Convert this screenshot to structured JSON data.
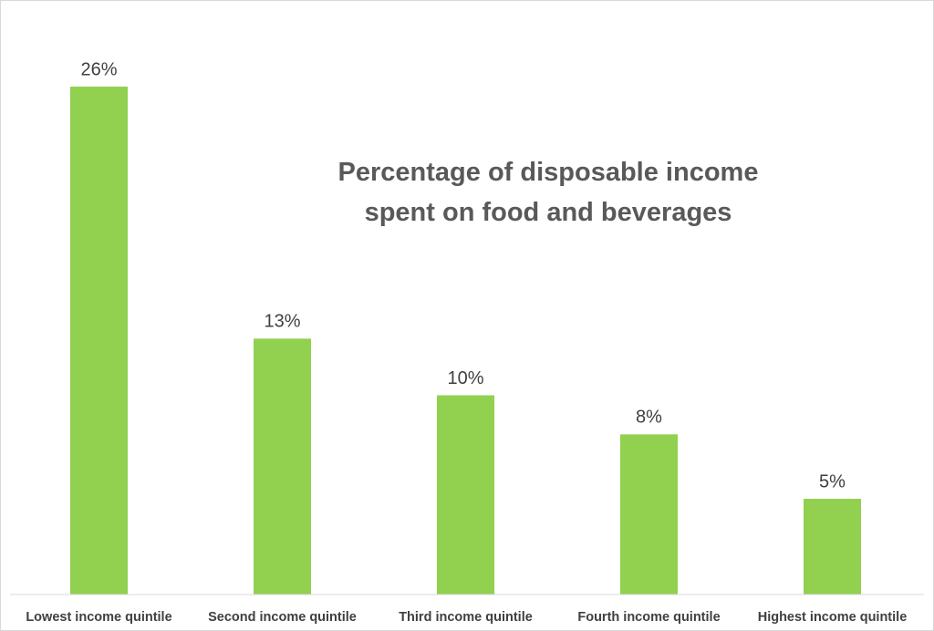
{
  "chart_data": {
    "type": "bar",
    "title": "Percentage of disposable income spent on food and beverages",
    "categories": [
      "Lowest income quintile",
      "Second income quintile",
      "Third income quintile",
      "Fourth income quintile",
      "Highest income quintile"
    ],
    "values": [
      26,
      13.1,
      10.2,
      8.2,
      4.9
    ],
    "value_labels": [
      "26%",
      "13%",
      "10%",
      "8%",
      "5%"
    ],
    "color": "#92d050"
  }
}
